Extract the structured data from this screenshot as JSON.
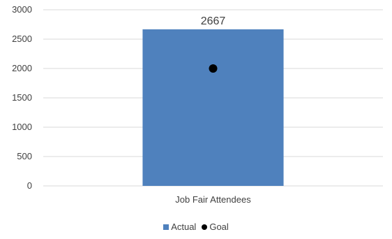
{
  "chart_data": {
    "type": "bar",
    "categories": [
      "Job Fair Attendees"
    ],
    "series": [
      {
        "name": "Actual",
        "values": [
          2667
        ],
        "kind": "bar"
      },
      {
        "name": "Goal",
        "values": [
          2000
        ],
        "kind": "marker"
      }
    ],
    "data_labels": [
      "2667"
    ],
    "ylim": [
      0,
      3000
    ],
    "yticks": [
      "0",
      "500",
      "1000",
      "1500",
      "2000",
      "2500",
      "3000"
    ],
    "grid": true,
    "legend_position": "bottom",
    "colors": {
      "bar": "#4F81BD",
      "marker": "#000000",
      "grid": "#D9D9D9",
      "text": "#404040"
    }
  }
}
